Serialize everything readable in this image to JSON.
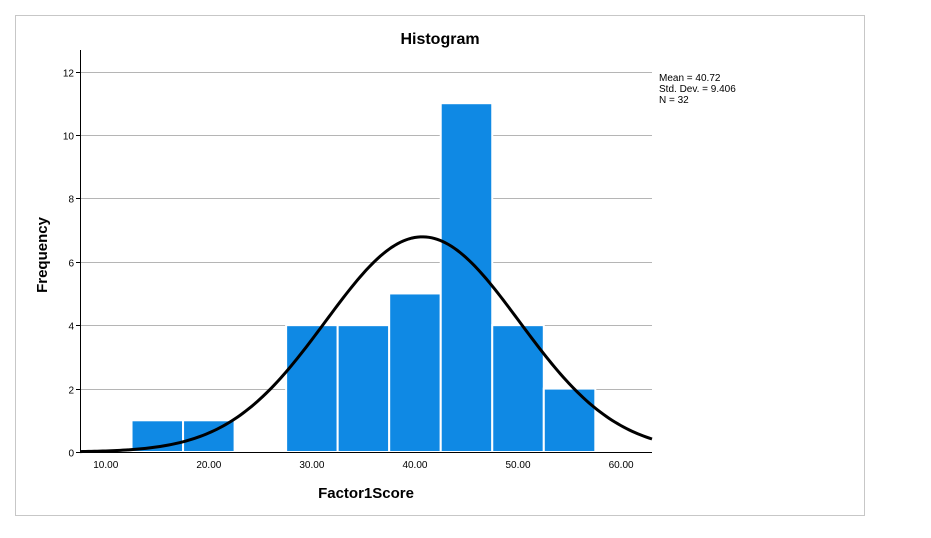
{
  "chart_data": {
    "type": "bar",
    "title": "Histogram",
    "xlabel": "Factor1Score",
    "ylabel": "Frequency",
    "xlim": [
      7.5,
      63
    ],
    "ylim": [
      0,
      12
    ],
    "xticks": [
      10,
      20,
      30,
      40,
      50,
      60
    ],
    "xtick_labels": [
      "10.00",
      "20.00",
      "30.00",
      "40.00",
      "50.00",
      "60.00"
    ],
    "yticks": [
      0,
      2,
      4,
      6,
      8,
      10,
      12
    ],
    "ytick_labels": [
      "0",
      "2",
      "4",
      "6",
      "8",
      "10",
      "12"
    ],
    "grid": true,
    "bar_color": "#0f89e4",
    "curve_color": "#000000",
    "bins": [
      {
        "start": 12.5,
        "end": 17.5,
        "count": 1
      },
      {
        "start": 17.5,
        "end": 22.5,
        "count": 1
      },
      {
        "start": 27.5,
        "end": 32.5,
        "count": 4
      },
      {
        "start": 32.5,
        "end": 37.5,
        "count": 4
      },
      {
        "start": 37.5,
        "end": 42.5,
        "count": 5
      },
      {
        "start": 42.5,
        "end": 47.5,
        "count": 11
      },
      {
        "start": 47.5,
        "end": 52.5,
        "count": 4
      },
      {
        "start": 52.5,
        "end": 57.5,
        "count": 2
      }
    ],
    "normal_curve": {
      "mean": 40.72,
      "std": 9.406,
      "n": 32,
      "bin_width": 5
    },
    "stats": {
      "mean": "Mean = 40.72",
      "std": "Std. Dev. = 9.406",
      "n": "N = 32"
    }
  }
}
